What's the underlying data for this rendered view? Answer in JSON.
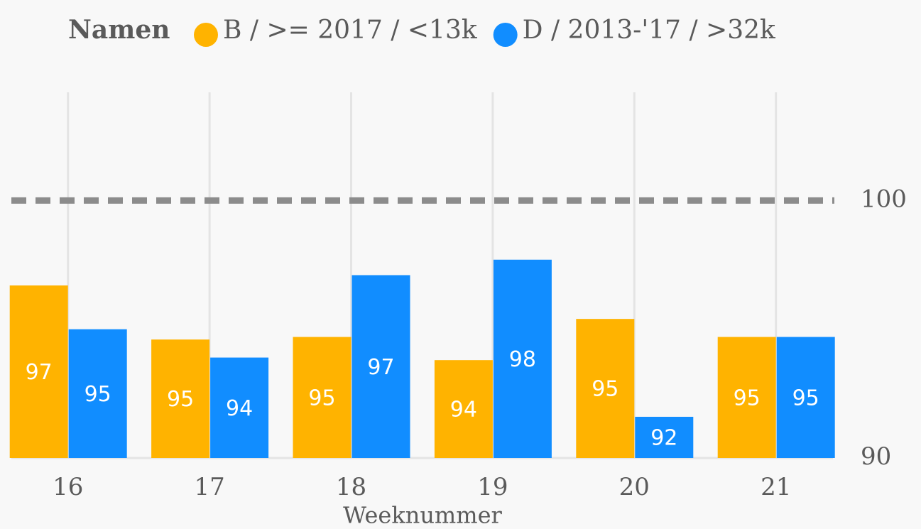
{
  "chart_data": {
    "type": "bar",
    "legend_title": "Namen",
    "x_label": "Weeknummer",
    "categories": [
      "16",
      "17",
      "18",
      "19",
      "20",
      "21"
    ],
    "series": [
      {
        "name": "B / >= 2017 / <13k",
        "color": "#ffb300",
        "values": [
          96.7,
          94.6,
          94.7,
          93.8,
          95.4,
          94.7
        ],
        "value_labels": [
          97,
          95,
          95,
          94,
          95,
          95
        ]
      },
      {
        "name": "D / 2013-'17 / >32k",
        "color": "#118dff",
        "values": [
          95.0,
          93.9,
          97.1,
          97.7,
          91.6,
          94.7
        ],
        "value_labels": [
          95,
          94,
          97,
          98,
          92,
          95
        ]
      }
    ],
    "ylim": [
      90,
      104.2
    ],
    "yticks": [
      90,
      100
    ],
    "grid": true,
    "legend": "top"
  }
}
